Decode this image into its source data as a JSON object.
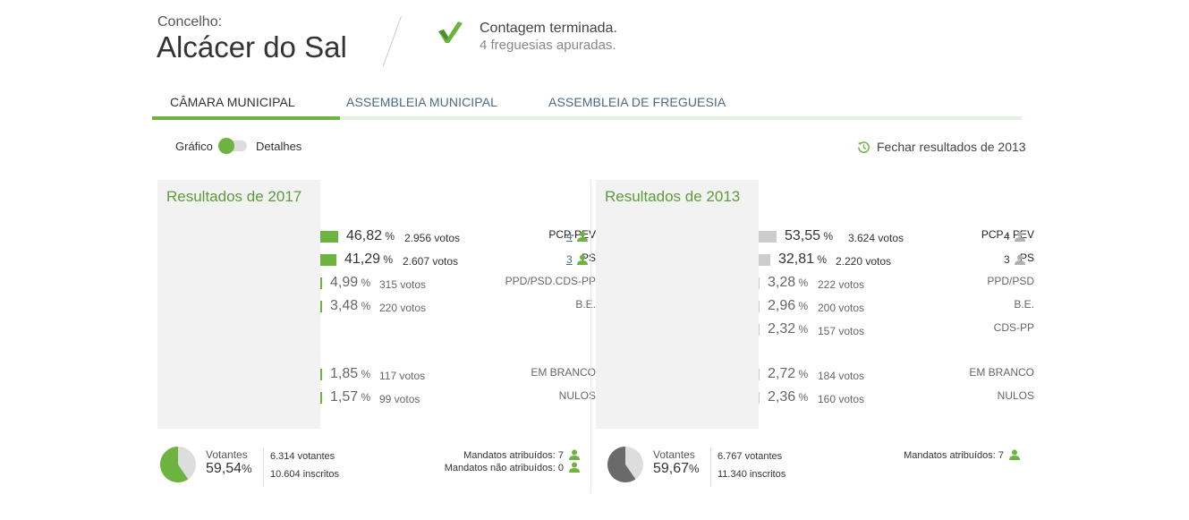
{
  "header": {
    "label": "Concelho:",
    "title": "Alcácer do Sal",
    "status_line1": "Contagem terminada.",
    "status_line2": "4 freguesias apuradas."
  },
  "tabs": [
    {
      "label": "CÂMARA MUNICIPAL",
      "active": true
    },
    {
      "label": "ASSEMBLEIA MUNICIPAL",
      "active": false
    },
    {
      "label": "ASSEMBLEIA DE FREGUESIA",
      "active": false
    }
  ],
  "toggle": {
    "left_label": "Gráfico",
    "right_label": "Detalhes"
  },
  "close_link": "Fechar resultados de 2013",
  "colors": {
    "accent": "#6db33f",
    "bar_2013": "#cccccc",
    "title_green": "#5c9c3a"
  },
  "results_2017": {
    "title": "Resultados de 2017",
    "parties": [
      {
        "name": "PCP-PEV",
        "pct": "46,82",
        "votes": "2.956 votos",
        "mandates": "4"
      },
      {
        "name": "PS",
        "pct": "41,29",
        "votes": "2.607 votos",
        "mandates": "3"
      },
      {
        "name": "PPD/PSD.CDS-PP",
        "pct": "4,99",
        "votes": "315 votos"
      },
      {
        "name": "B.E.",
        "pct": "3,48",
        "votes": "220 votos"
      }
    ],
    "blank": {
      "name": "EM BRANCO",
      "pct": "1,85",
      "votes": "117 votos"
    },
    "null": {
      "name": "NULOS",
      "pct": "1,57",
      "votes": "99 votos"
    },
    "footer": {
      "votantes_label": "Votantes",
      "votantes_pct": "59,54",
      "voters": "6.314 votantes",
      "registered": "10.604 inscritos",
      "mandates_assigned": "Mandatos atribuídos: 7",
      "mandates_unassigned": "Mandatos não atribuídos: 0",
      "turnout": 59.54
    }
  },
  "results_2013": {
    "title": "Resultados de 2013",
    "parties": [
      {
        "name": "PCP - PEV",
        "pct": "53,55",
        "votes": "3.624 votos",
        "mandates": "4"
      },
      {
        "name": "PS",
        "pct": "32,81",
        "votes": "2.220 votos",
        "mandates": "3"
      },
      {
        "name": "PPD/PSD",
        "pct": "3,28",
        "votes": "222 votos"
      },
      {
        "name": "B.E.",
        "pct": "2,96",
        "votes": "200 votos"
      },
      {
        "name": "CDS-PP",
        "pct": "2,32",
        "votes": "157 votos"
      }
    ],
    "blank": {
      "name": "EM BRANCO",
      "pct": "2,72",
      "votes": "184 votos"
    },
    "null": {
      "name": "NULOS",
      "pct": "2,36",
      "votes": "160 votos"
    },
    "footer": {
      "votantes_label": "Votantes",
      "votantes_pct": "59,67",
      "voters": "6.767 votantes",
      "registered": "11.340 inscritos",
      "mandates_assigned": "Mandatos atribuídos: 7",
      "turnout": 59.67
    }
  }
}
